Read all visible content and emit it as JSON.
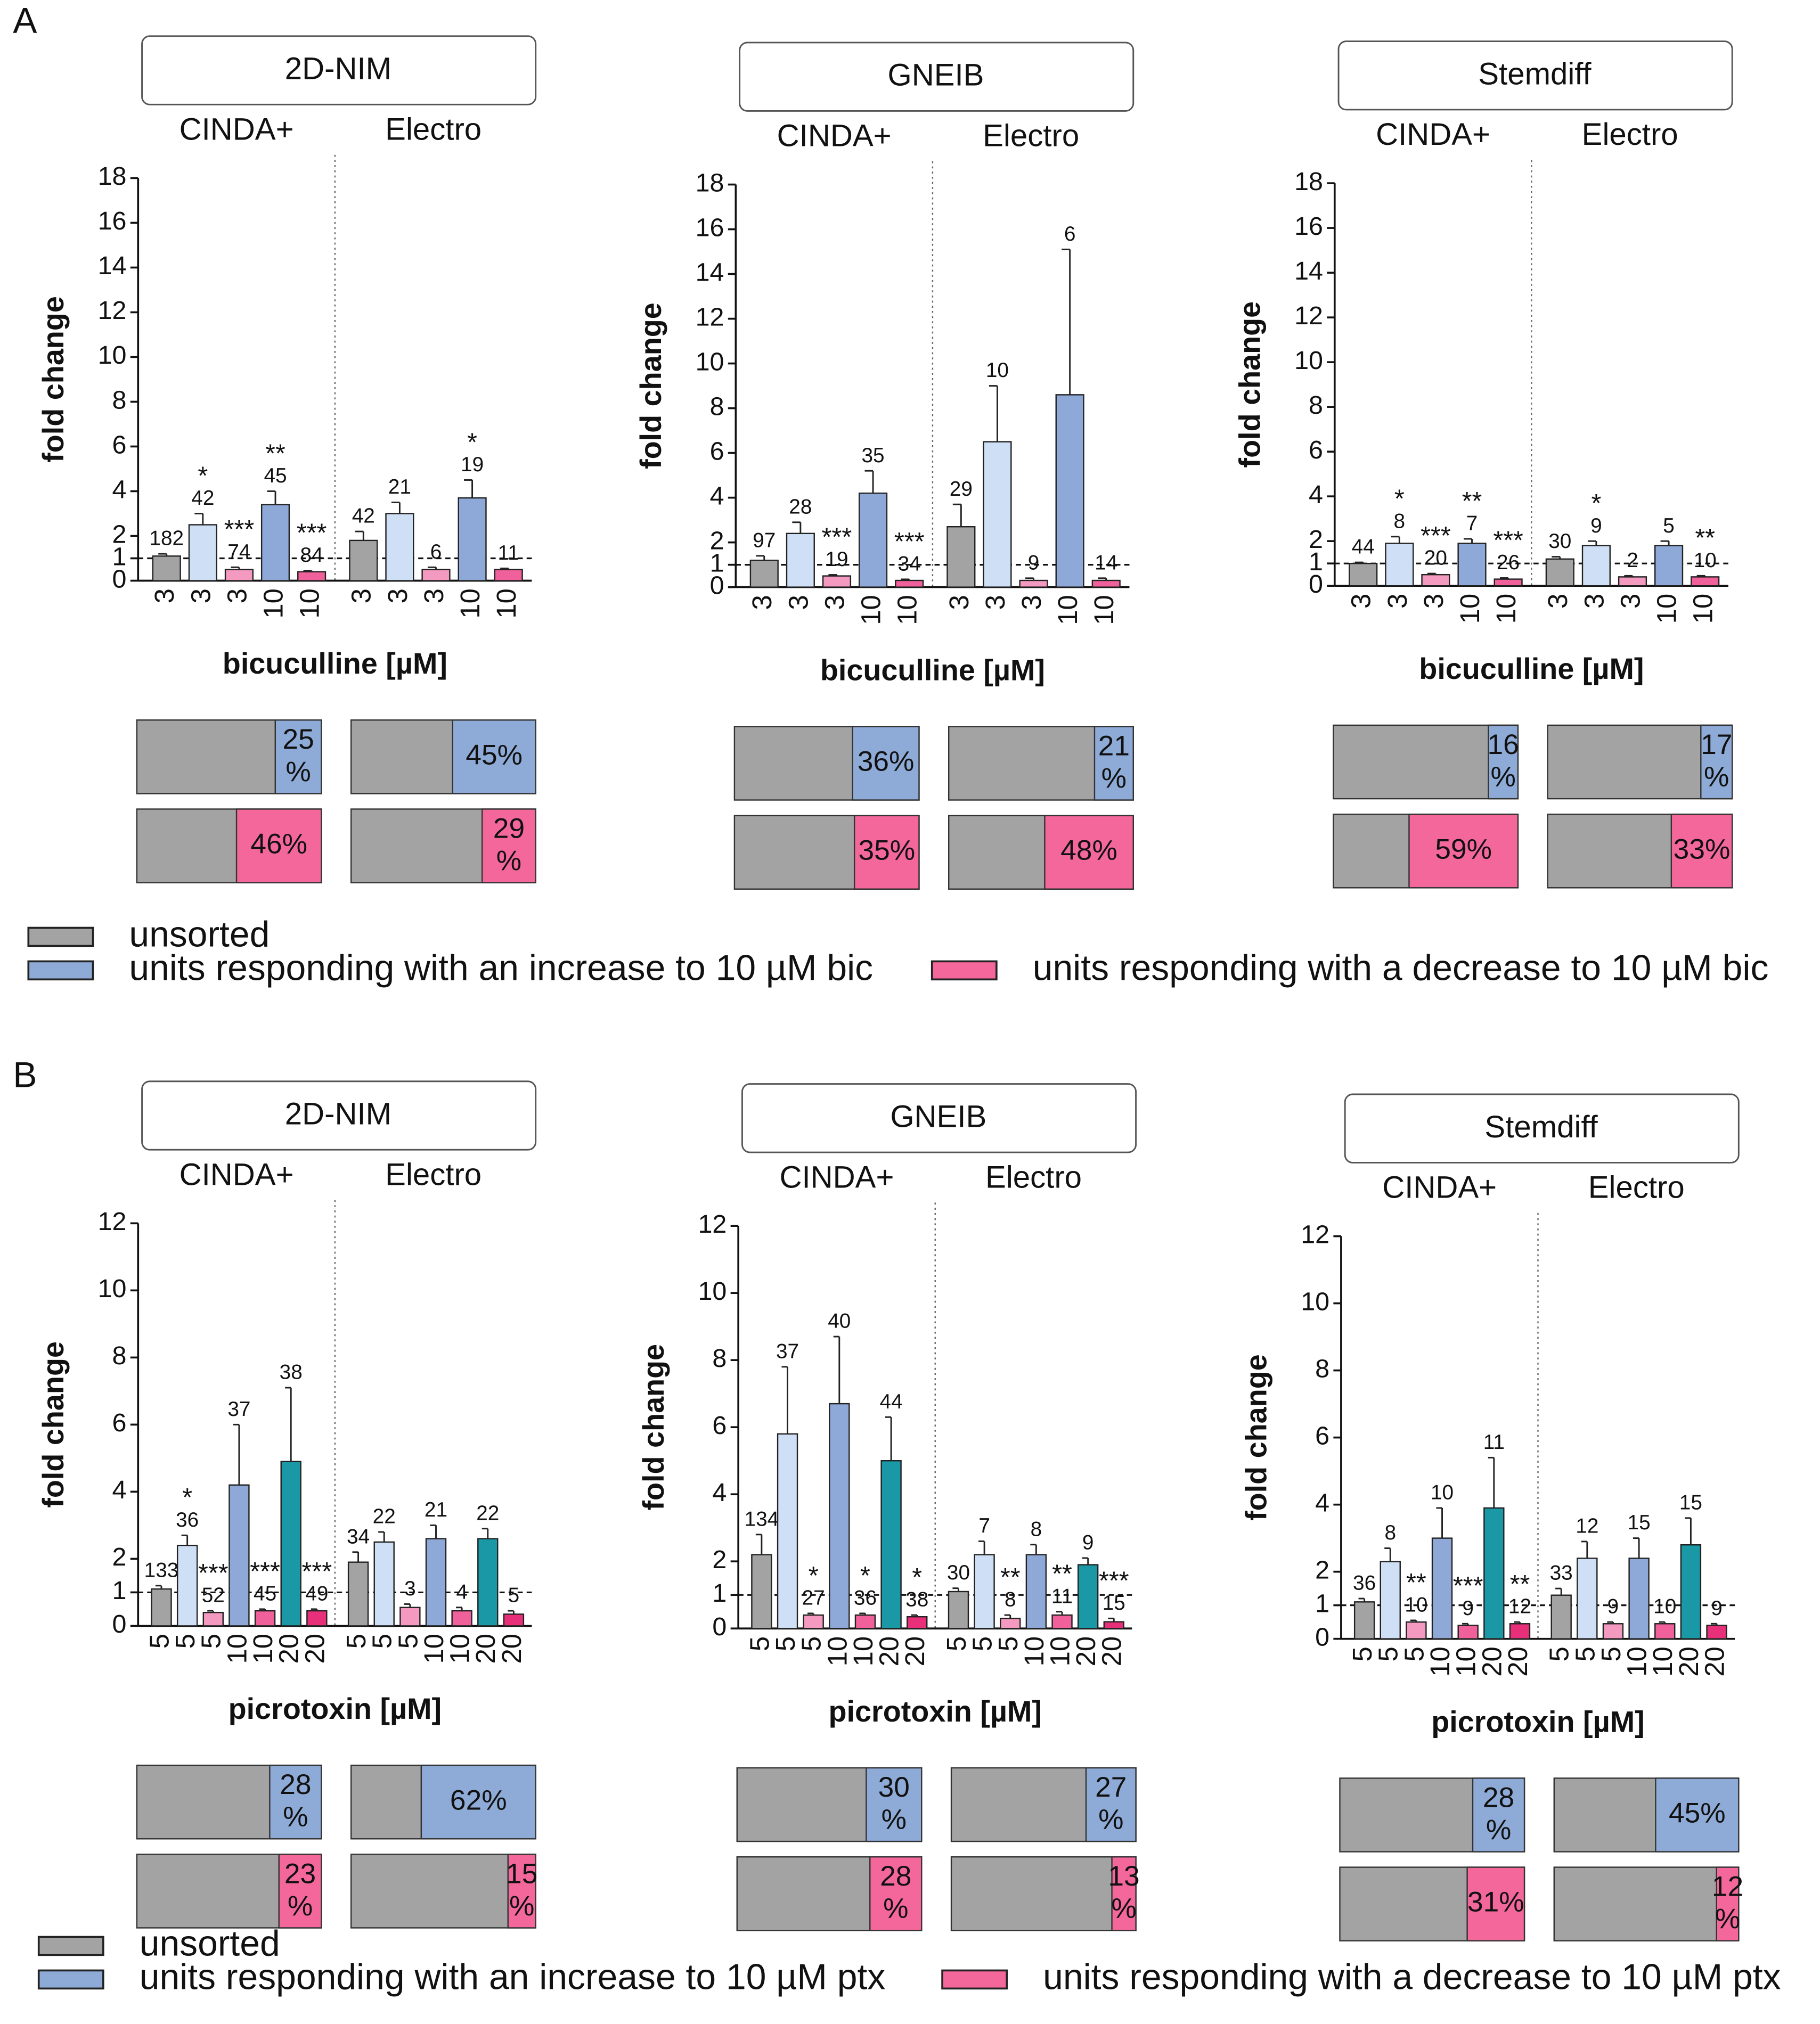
{
  "panels": [
    {
      "label": "A",
      "legend": [
        {
          "name": "unsorted",
          "color": "#a3a3a3"
        },
        {
          "name": "units responding with an increase to 10 µM bic",
          "color": "#8eaad6"
        },
        {
          "name": "units responding with a decrease to 10 µM bic",
          "color": "#f4679a"
        }
      ]
    },
    {
      "label": "B",
      "legend": [
        {
          "name": "unsorted",
          "color": "#a3a3a3"
        },
        {
          "name": "units responding with an increase to 10 µM ptx",
          "color": "#8eaad6"
        },
        {
          "name": "units responding with a decrease to 10 µM ptx",
          "color": "#f4679a"
        }
      ]
    }
  ],
  "chart_data": [
    {
      "type": "bar",
      "title": "2D-NIM",
      "groups": [
        "CINDA+",
        "Electro"
      ],
      "xlabel": "bicuculline [µM]",
      "ylabel": "fold change",
      "categories": [
        "3",
        "3",
        "3",
        "10",
        "10",
        "3",
        "3",
        "3",
        "10",
        "10"
      ],
      "values": [
        1.1,
        2.5,
        0.5,
        3.4,
        0.4,
        1.8,
        3.0,
        0.5,
        3.7,
        0.5
      ],
      "errors": [
        0.1,
        0.5,
        0.1,
        0.6,
        0.05,
        0.4,
        0.5,
        0.1,
        0.8,
        0.05
      ],
      "n": [
        182,
        42,
        74,
        45,
        84,
        42,
        21,
        6,
        19,
        11
      ],
      "stars": [
        null,
        "*",
        "***",
        "**",
        "***",
        null,
        null,
        null,
        "*",
        null
      ],
      "colors": [
        "#a3a3a3",
        "#cfe0f6",
        "#f49ac1",
        "#8ea9d8",
        "#f0609a",
        "#a3a3a3",
        "#cfe0f6",
        "#f49ac1",
        "#8ea9d8",
        "#f0609a"
      ],
      "ylim": [
        0,
        18
      ],
      "yticks": [
        0,
        1,
        2,
        4,
        6,
        8,
        10,
        12,
        14,
        16,
        18
      ],
      "reference_line": 1,
      "response": {
        "increase": {
          "color": "#8eaad6",
          "values": [
            25,
            45
          ],
          "value_labels": [
            "25%",
            "45%"
          ]
        },
        "decrease": {
          "color": "#f4679a",
          "values": [
            46,
            29
          ],
          "value_labels": [
            "46%",
            "29%"
          ]
        }
      }
    },
    {
      "type": "bar",
      "title": "GNEIB",
      "groups": [
        "CINDA+",
        "Electro"
      ],
      "xlabel": "bicuculline [µM]",
      "ylabel": "fold change",
      "categories": [
        "3",
        "3",
        "3",
        "10",
        "10",
        "3",
        "3",
        "3",
        "10",
        "10"
      ],
      "values": [
        1.2,
        2.4,
        0.5,
        4.2,
        0.3,
        2.7,
        6.5,
        0.3,
        8.6,
        0.3
      ],
      "errors": [
        0.2,
        0.5,
        0.05,
        1.0,
        0.05,
        1.0,
        2.5,
        0.1,
        6.5,
        0.1
      ],
      "n": [
        97,
        28,
        19,
        35,
        34,
        29,
        10,
        9,
        6,
        14
      ],
      "stars": [
        null,
        null,
        "***",
        null,
        "***",
        null,
        null,
        null,
        null,
        null
      ],
      "colors": [
        "#a3a3a3",
        "#cfe0f6",
        "#f49ac1",
        "#8ea9d8",
        "#f0609a",
        "#a3a3a3",
        "#cfe0f6",
        "#f49ac1",
        "#8ea9d8",
        "#f0609a"
      ],
      "ylim": [
        0,
        18
      ],
      "yticks": [
        0,
        1,
        2,
        4,
        6,
        8,
        10,
        12,
        14,
        16,
        18
      ],
      "reference_line": 1,
      "response": {
        "increase": {
          "color": "#8eaad6",
          "values": [
            36,
            21
          ],
          "value_labels": [
            "36%",
            "21%"
          ]
        },
        "decrease": {
          "color": "#f4679a",
          "values": [
            35,
            48
          ],
          "value_labels": [
            "35%",
            "48%"
          ]
        }
      }
    },
    {
      "type": "bar",
      "title": "Stemdiff",
      "groups": [
        "CINDA+",
        "Electro"
      ],
      "xlabel": "bicuculline [µM]",
      "ylabel": "fold change",
      "categories": [
        "3",
        "3",
        "3",
        "10",
        "10",
        "3",
        "3",
        "3",
        "10",
        "10"
      ],
      "values": [
        1.0,
        1.9,
        0.5,
        1.9,
        0.3,
        1.2,
        1.8,
        0.4,
        1.8,
        0.4
      ],
      "errors": [
        0.05,
        0.3,
        0.05,
        0.2,
        0.05,
        0.1,
        0.2,
        0.05,
        0.2,
        0.05
      ],
      "n": [
        44,
        8,
        20,
        7,
        26,
        30,
        9,
        2,
        5,
        10
      ],
      "stars": [
        null,
        "*",
        "***",
        "**",
        "***",
        null,
        "*",
        null,
        null,
        "**"
      ],
      "colors": [
        "#a3a3a3",
        "#cfe0f6",
        "#f49ac1",
        "#8ea9d8",
        "#f0609a",
        "#a3a3a3",
        "#cfe0f6",
        "#f49ac1",
        "#8ea9d8",
        "#f0609a"
      ],
      "ylim": [
        0,
        18
      ],
      "yticks": [
        0,
        1,
        2,
        4,
        6,
        8,
        10,
        12,
        14,
        16,
        18
      ],
      "reference_line": 1,
      "response": {
        "increase": {
          "color": "#8eaad6",
          "values": [
            16,
            17
          ],
          "value_labels": [
            "16%",
            "17%"
          ]
        },
        "decrease": {
          "color": "#f4679a",
          "values": [
            59,
            33
          ],
          "value_labels": [
            "59%",
            "33%"
          ]
        }
      }
    },
    {
      "type": "bar",
      "title": "2D-NIM",
      "groups": [
        "CINDA+",
        "Electro"
      ],
      "xlabel": "picrotoxin [µM]",
      "ylabel": "fold change",
      "categories": [
        "5",
        "5",
        "5",
        "10",
        "10",
        "20",
        "20",
        "5",
        "5",
        "5",
        "10",
        "10",
        "20",
        "20"
      ],
      "values": [
        1.1,
        2.4,
        0.4,
        4.2,
        0.45,
        4.9,
        0.45,
        1.9,
        2.5,
        0.55,
        2.6,
        0.45,
        2.6,
        0.35
      ],
      "errors": [
        0.1,
        0.3,
        0.05,
        1.8,
        0.05,
        2.2,
        0.05,
        0.3,
        0.3,
        0.1,
        0.4,
        0.1,
        0.3,
        0.1
      ],
      "n": [
        133,
        36,
        52,
        37,
        45,
        38,
        49,
        34,
        22,
        3,
        21,
        4,
        22,
        5
      ],
      "stars": [
        null,
        "*",
        "***",
        null,
        "***",
        null,
        "***",
        null,
        null,
        null,
        null,
        null,
        null,
        null
      ],
      "colors": [
        "#a3a3a3",
        "#cfe0f6",
        "#f49ac1",
        "#8ea9d8",
        "#f0609a",
        "#1a98a6",
        "#e8307a",
        "#a3a3a3",
        "#cfe0f6",
        "#f49ac1",
        "#8ea9d8",
        "#f0609a",
        "#1a98a6",
        "#e8307a"
      ],
      "ylim": [
        0,
        12
      ],
      "yticks": [
        0,
        1,
        2,
        4,
        6,
        8,
        10,
        12
      ],
      "reference_line": 1,
      "response": {
        "increase": {
          "color": "#8eaad6",
          "values": [
            28,
            62
          ],
          "value_labels": [
            "28%",
            "62%"
          ]
        },
        "decrease": {
          "color": "#f4679a",
          "values": [
            23,
            15
          ],
          "value_labels": [
            "23%",
            "15%"
          ]
        }
      }
    },
    {
      "type": "bar",
      "title": "GNEIB",
      "groups": [
        "CINDA+",
        "Electro"
      ],
      "xlabel": "picrotoxin [µM]",
      "ylabel": "fold change",
      "categories": [
        "5",
        "5",
        "5",
        "10",
        "10",
        "20",
        "20",
        "5",
        "5",
        "5",
        "10",
        "10",
        "20",
        "20"
      ],
      "values": [
        2.2,
        5.8,
        0.4,
        6.7,
        0.4,
        5.0,
        0.35,
        1.1,
        2.2,
        0.3,
        2.2,
        0.4,
        1.9,
        0.2
      ],
      "errors": [
        0.6,
        2.0,
        0.05,
        2.0,
        0.05,
        1.3,
        0.05,
        0.1,
        0.4,
        0.1,
        0.3,
        0.1,
        0.2,
        0.1
      ],
      "n": [
        134,
        37,
        27,
        40,
        36,
        44,
        38,
        30,
        7,
        8,
        8,
        11,
        9,
        15
      ],
      "stars": [
        null,
        null,
        "*",
        null,
        "*",
        null,
        "*",
        null,
        null,
        "**",
        null,
        "**",
        null,
        "***"
      ],
      "colors": [
        "#a3a3a3",
        "#cfe0f6",
        "#f49ac1",
        "#8ea9d8",
        "#f0609a",
        "#1a98a6",
        "#e8307a",
        "#a3a3a3",
        "#cfe0f6",
        "#f49ac1",
        "#8ea9d8",
        "#f0609a",
        "#1a98a6",
        "#e8307a"
      ],
      "ylim": [
        0,
        12
      ],
      "yticks": [
        0,
        1,
        2,
        4,
        6,
        8,
        10,
        12
      ],
      "reference_line": 1,
      "response": {
        "increase": {
          "color": "#8eaad6",
          "values": [
            30,
            27
          ],
          "value_labels": [
            "30%",
            "27%"
          ]
        },
        "decrease": {
          "color": "#f4679a",
          "values": [
            28,
            13
          ],
          "value_labels": [
            "28%",
            "13%"
          ]
        }
      }
    },
    {
      "type": "bar",
      "title": "Stemdiff",
      "groups": [
        "CINDA+",
        "Electro"
      ],
      "xlabel": "picrotoxin [µM]",
      "ylabel": "fold change",
      "categories": [
        "5",
        "5",
        "5",
        "10",
        "10",
        "20",
        "20",
        "5",
        "5",
        "5",
        "10",
        "10",
        "20",
        "20"
      ],
      "values": [
        1.1,
        2.3,
        0.5,
        3.0,
        0.4,
        3.9,
        0.45,
        1.3,
        2.4,
        0.45,
        2.4,
        0.45,
        2.8,
        0.4
      ],
      "errors": [
        0.1,
        0.4,
        0.05,
        0.9,
        0.05,
        1.5,
        0.05,
        0.2,
        0.5,
        0.05,
        0.6,
        0.05,
        0.8,
        0.05
      ],
      "n": [
        36,
        8,
        10,
        10,
        9,
        11,
        12,
        33,
        12,
        9,
        15,
        10,
        15,
        9
      ],
      "stars": [
        null,
        null,
        "**",
        null,
        "***",
        null,
        "**",
        null,
        null,
        null,
        null,
        null,
        null,
        null
      ],
      "colors": [
        "#a3a3a3",
        "#cfe0f6",
        "#f49ac1",
        "#8ea9d8",
        "#f0609a",
        "#1a98a6",
        "#e8307a",
        "#a3a3a3",
        "#cfe0f6",
        "#f49ac1",
        "#8ea9d8",
        "#f0609a",
        "#1a98a6",
        "#e8307a"
      ],
      "ylim": [
        0,
        12
      ],
      "yticks": [
        0,
        1,
        2,
        4,
        6,
        8,
        10,
        12
      ],
      "reference_line": 1,
      "response": {
        "increase": {
          "color": "#8eaad6",
          "values": [
            28,
            45
          ],
          "value_labels": [
            "28%",
            "45%"
          ]
        },
        "decrease": {
          "color": "#f4679a",
          "values": [
            31,
            12
          ],
          "value_labels": [
            "31%",
            "12%"
          ]
        }
      }
    }
  ]
}
